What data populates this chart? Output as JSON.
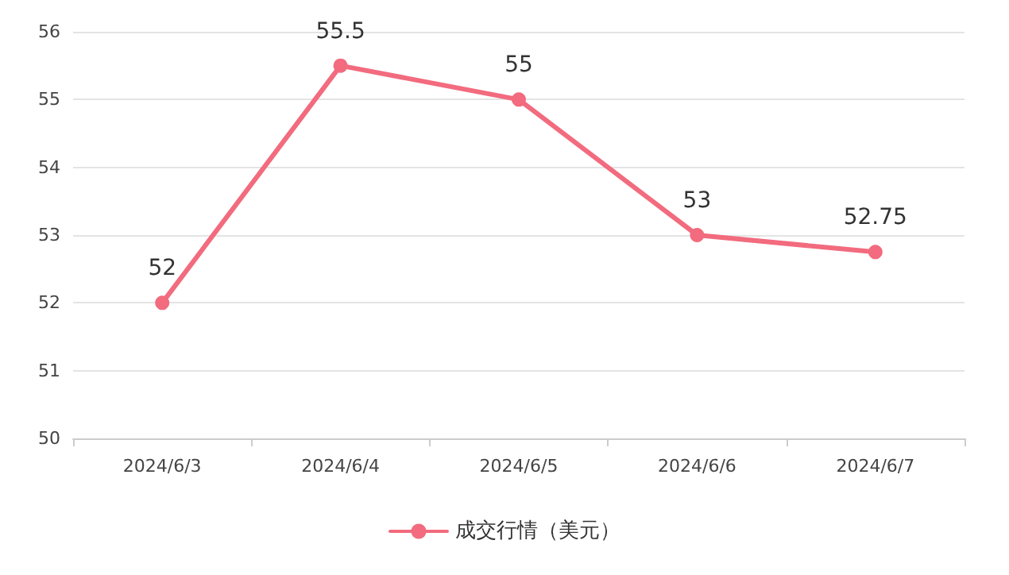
{
  "chart_data": {
    "type": "line",
    "categories": [
      "2024/6/3",
      "2024/6/4",
      "2024/6/5",
      "2024/6/6",
      "2024/6/7"
    ],
    "series": [
      {
        "name": "成交行情（美元）",
        "color": "#f26b7e",
        "values": [
          52,
          55.5,
          55,
          53,
          52.75
        ]
      }
    ],
    "ylim": [
      50,
      56
    ],
    "yticks": [
      50,
      51,
      52,
      53,
      54,
      55,
      56
    ],
    "grid": "y",
    "legend": "bottom",
    "marker": "circle",
    "line_style": "solid",
    "data_labels": true
  }
}
